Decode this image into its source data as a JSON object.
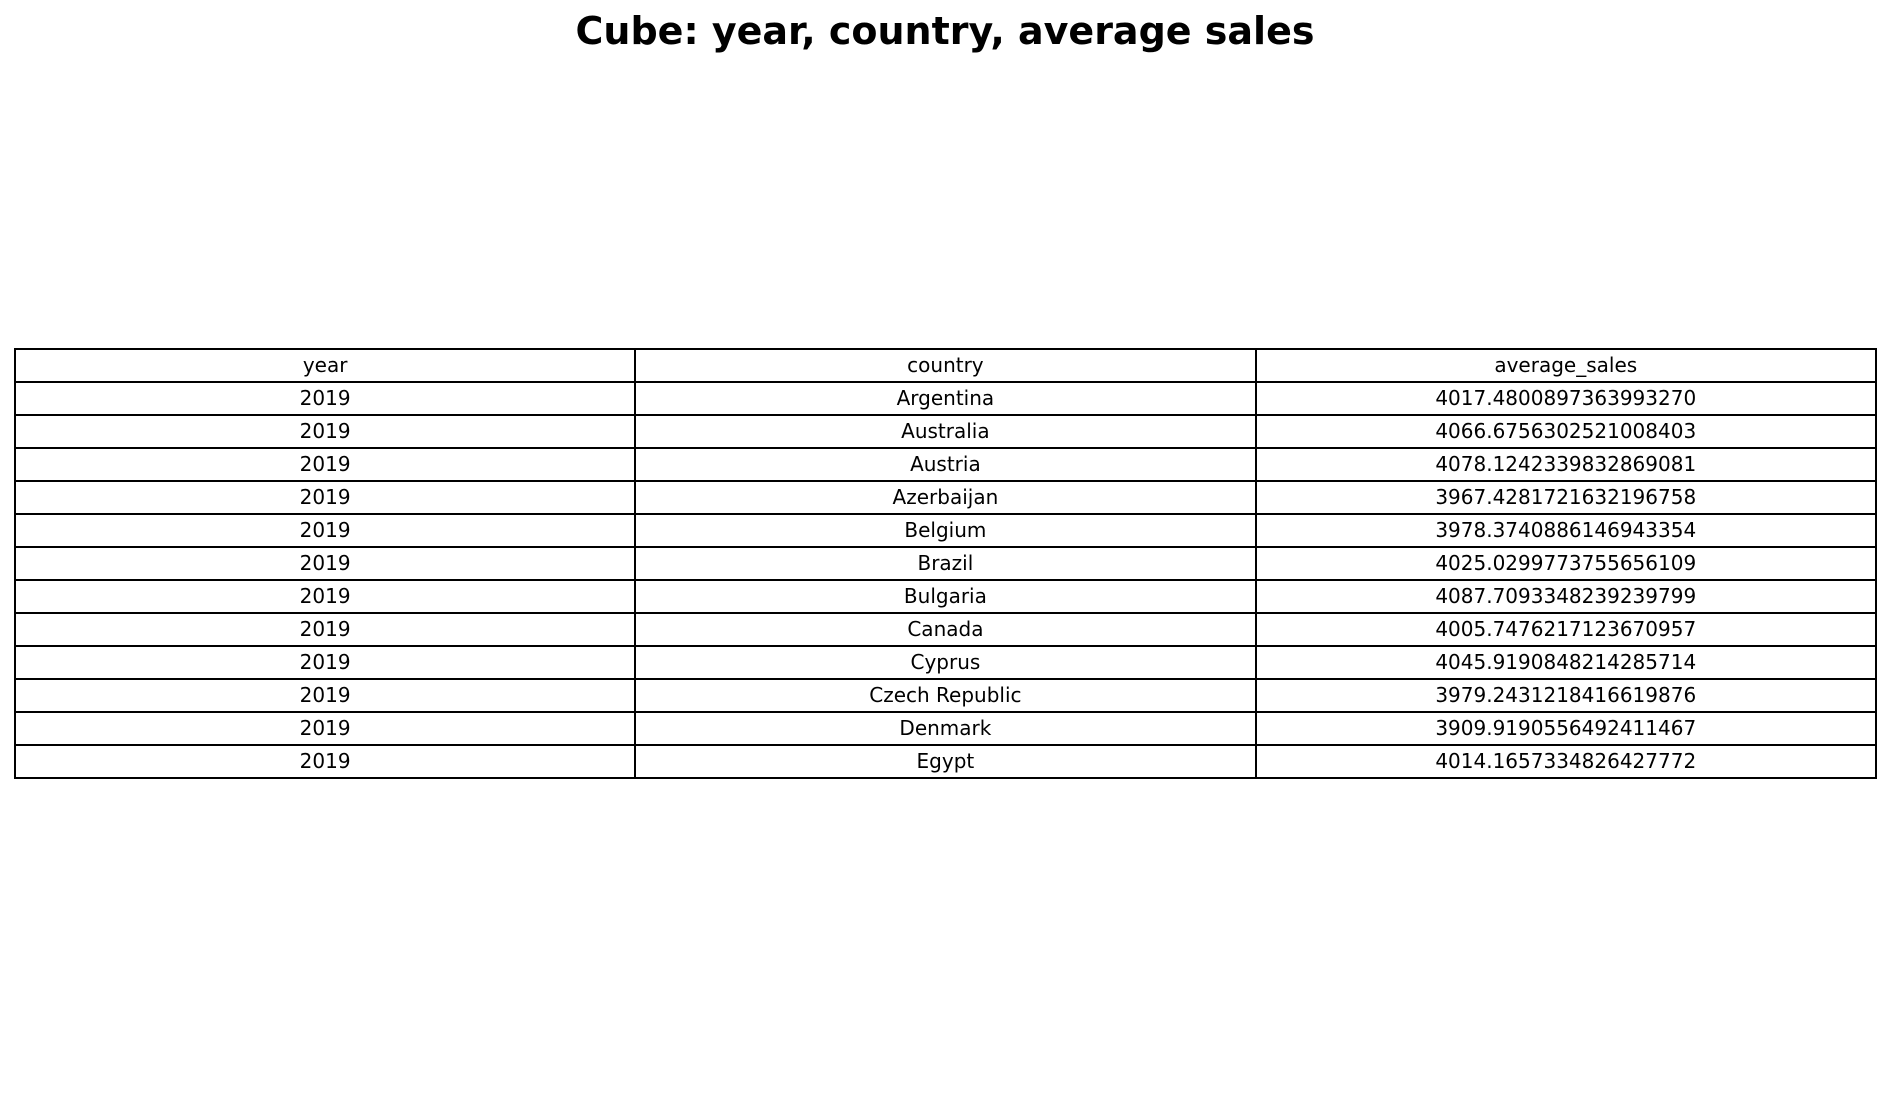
{
  "chart_data": {
    "type": "table",
    "title": "Cube: year, country, average sales",
    "columns": [
      "year",
      "country",
      "average_sales"
    ],
    "rows": [
      [
        "2019",
        "Argentina",
        "4017.4800897363993270"
      ],
      [
        "2019",
        "Australia",
        "4066.6756302521008403"
      ],
      [
        "2019",
        "Austria",
        "4078.1242339832869081"
      ],
      [
        "2019",
        "Azerbaijan",
        "3967.4281721632196758"
      ],
      [
        "2019",
        "Belgium",
        "3978.3740886146943354"
      ],
      [
        "2019",
        "Brazil",
        "4025.0299773755656109"
      ],
      [
        "2019",
        "Bulgaria",
        "4087.7093348239239799"
      ],
      [
        "2019",
        "Canada",
        "4005.7476217123670957"
      ],
      [
        "2019",
        "Cyprus",
        "4045.9190848214285714"
      ],
      [
        "2019",
        "Czech Republic",
        "3979.2431218416619876"
      ],
      [
        "2019",
        "Denmark",
        "3909.9190556492411467"
      ],
      [
        "2019",
        "Egypt",
        "4014.1657334826427772"
      ]
    ]
  }
}
